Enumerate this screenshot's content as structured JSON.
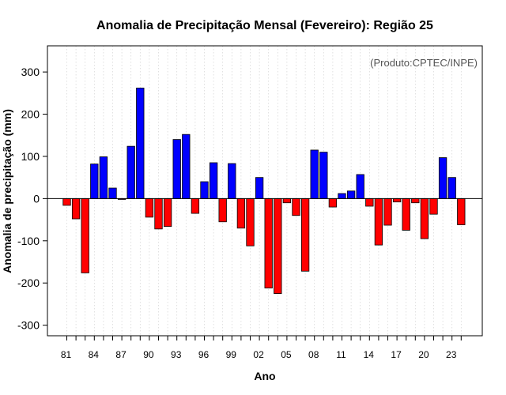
{
  "chart_data": {
    "type": "bar",
    "title": "Anomalia de Precipitação Mensal (Fevereiro): Região 25",
    "xlabel": "Ano",
    "ylabel": "Anomalia de precipitação (mm)",
    "annotation": "(Produto:CPTEC/INPE)",
    "ylim": [
      -325,
      362
    ],
    "yticks": [
      -300,
      -200,
      -100,
      0,
      100,
      200,
      300
    ],
    "xtick_labels": [
      "81",
      "84",
      "87",
      "90",
      "93",
      "96",
      "99",
      "02",
      "05",
      "08",
      "11",
      "14",
      "17",
      "20",
      "23"
    ],
    "grid": "vertical-dotted",
    "positive_color": "#0000ff",
    "negative_color": "#ff0000",
    "categories": [
      "1981",
      "1982",
      "1983",
      "1984",
      "1985",
      "1986",
      "1987",
      "1988",
      "1989",
      "1990",
      "1991",
      "1992",
      "1993",
      "1994",
      "1995",
      "1996",
      "1997",
      "1998",
      "1999",
      "2000",
      "2001",
      "2002",
      "2003",
      "2004",
      "2005",
      "2006",
      "2007",
      "2008",
      "2009",
      "2010",
      "2011",
      "2012",
      "2013",
      "2014",
      "2015",
      "2016",
      "2017",
      "2018",
      "2019",
      "2020",
      "2021",
      "2022",
      "2023",
      "2024"
    ],
    "values": [
      -16,
      -48,
      -176,
      82,
      99,
      25,
      -2,
      124,
      262,
      -44,
      -72,
      -66,
      140,
      152,
      -35,
      40,
      85,
      -55,
      83,
      -70,
      -112,
      50,
      -212,
      -225,
      -10,
      -40,
      -172,
      115,
      110,
      -20,
      12,
      18,
      57,
      -18,
      -110,
      -63,
      -8,
      -75,
      -10,
      -95,
      -37,
      97,
      50,
      -62
    ]
  }
}
